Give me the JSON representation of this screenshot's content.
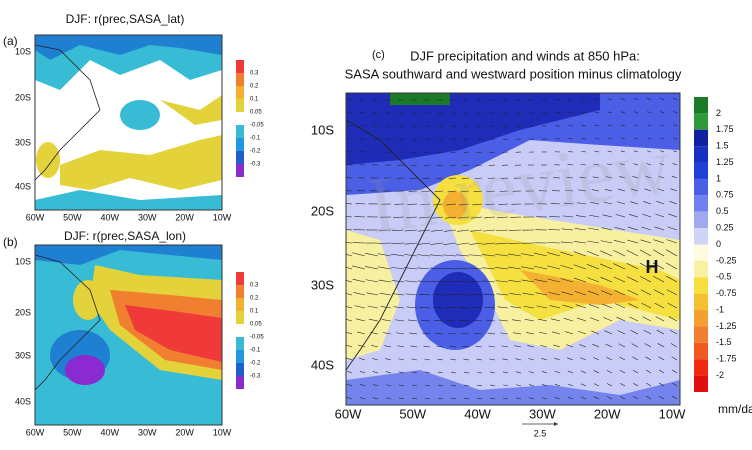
{
  "panels": [
    {
      "label": "(a)",
      "title": "DJF: r(prec,SASA_lat)",
      "xticks": [
        "60W",
        "50W",
        "40W",
        "30W",
        "20W",
        "10W"
      ],
      "yticks": [
        "10S",
        "20S",
        "30S",
        "40S"
      ],
      "colorbar": [
        "0.3",
        "0.2",
        "0.1",
        "0.05",
        "-0.05",
        "-0.1",
        "-0.2",
        "-0.3"
      ]
    },
    {
      "label": "(b)",
      "title": "DJF: r(prec,SASA_lon)",
      "xticks": [
        "60W",
        "50W",
        "40W",
        "30W",
        "20W",
        "10W"
      ],
      "yticks": [
        "10S",
        "20S",
        "30S",
        "40S"
      ],
      "colorbar": [
        "0.3",
        "0.2",
        "0.1",
        "0.05",
        "-0.05",
        "-0.1",
        "-0.2",
        "-0.3"
      ]
    },
    {
      "label": "(c)",
      "title": [
        "DJF precipitation and winds at 850 hPa:",
        "SASA southward and westward position minus climatology"
      ],
      "xticks": [
        "60W",
        "50W",
        "40W",
        "30W",
        "20W",
        "10W"
      ],
      "yticks": [
        "10S",
        "20S",
        "30S",
        "40S"
      ],
      "colorbar": [
        "2",
        "1.75",
        "1.5",
        "1.25",
        "1",
        "0.75",
        "0.5",
        "0.25",
        "0",
        "-0.25",
        "-0.5",
        "-0.75",
        "-1",
        "-1.25",
        "-1.5",
        "-1.75",
        "-2"
      ],
      "unit": "mm/day",
      "vector_scale": "2.5",
      "annotation": "H"
    }
  ],
  "watermark": "In review"
}
